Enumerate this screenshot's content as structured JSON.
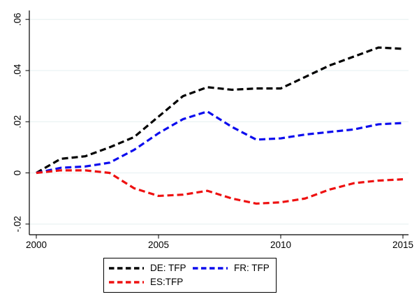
{
  "figure": {
    "background_color": "#ffffff",
    "title": ""
  },
  "chart_data": {
    "type": "line",
    "line_style": "dashed",
    "x": [
      2000,
      2001,
      2002,
      2003,
      2004,
      2005,
      2006,
      2007,
      2008,
      2009,
      2010,
      2011,
      2012,
      2013,
      2014,
      2015
    ],
    "series": [
      {
        "name": "DE: TFP",
        "color": "#000000",
        "values": [
          0.0,
          0.0055,
          0.0065,
          0.01,
          0.014,
          0.022,
          0.03,
          0.0335,
          0.0325,
          0.033,
          0.033,
          0.0375,
          0.042,
          0.0455,
          0.049,
          0.0485
        ]
      },
      {
        "name": "FR: TFP",
        "color": "#0d0dee",
        "values": [
          0.0,
          0.002,
          0.0025,
          0.004,
          0.009,
          0.0155,
          0.021,
          0.024,
          0.018,
          0.013,
          0.0135,
          0.015,
          0.016,
          0.017,
          0.019,
          0.0195
        ]
      },
      {
        "name": "ES:TFP",
        "color": "#ee1111",
        "values": [
          0.0,
          0.001,
          0.001,
          0.0,
          -0.006,
          -0.009,
          -0.0085,
          -0.007,
          -0.01,
          -0.012,
          -0.0115,
          -0.01,
          -0.0065,
          -0.004,
          -0.003,
          -0.0025
        ]
      }
    ],
    "title": "",
    "xlabel": "",
    "ylabel": "",
    "x_tick_labels": [
      "2000",
      "2005",
      "2010",
      "2015"
    ],
    "x_tick_values": [
      2000,
      2005,
      2010,
      2015
    ],
    "y_tick_labels": [
      ".06",
      ".04",
      ".02",
      "0",
      "-.02"
    ],
    "y_tick_values": [
      0.06,
      0.04,
      0.02,
      0,
      -0.02
    ],
    "xlim": [
      2000,
      2015
    ],
    "ylim": [
      -0.024,
      0.0635
    ],
    "grid": true,
    "gridline_color": "#eaf2f3",
    "axis_color": "#000000",
    "legend_position": "bottom-center"
  }
}
